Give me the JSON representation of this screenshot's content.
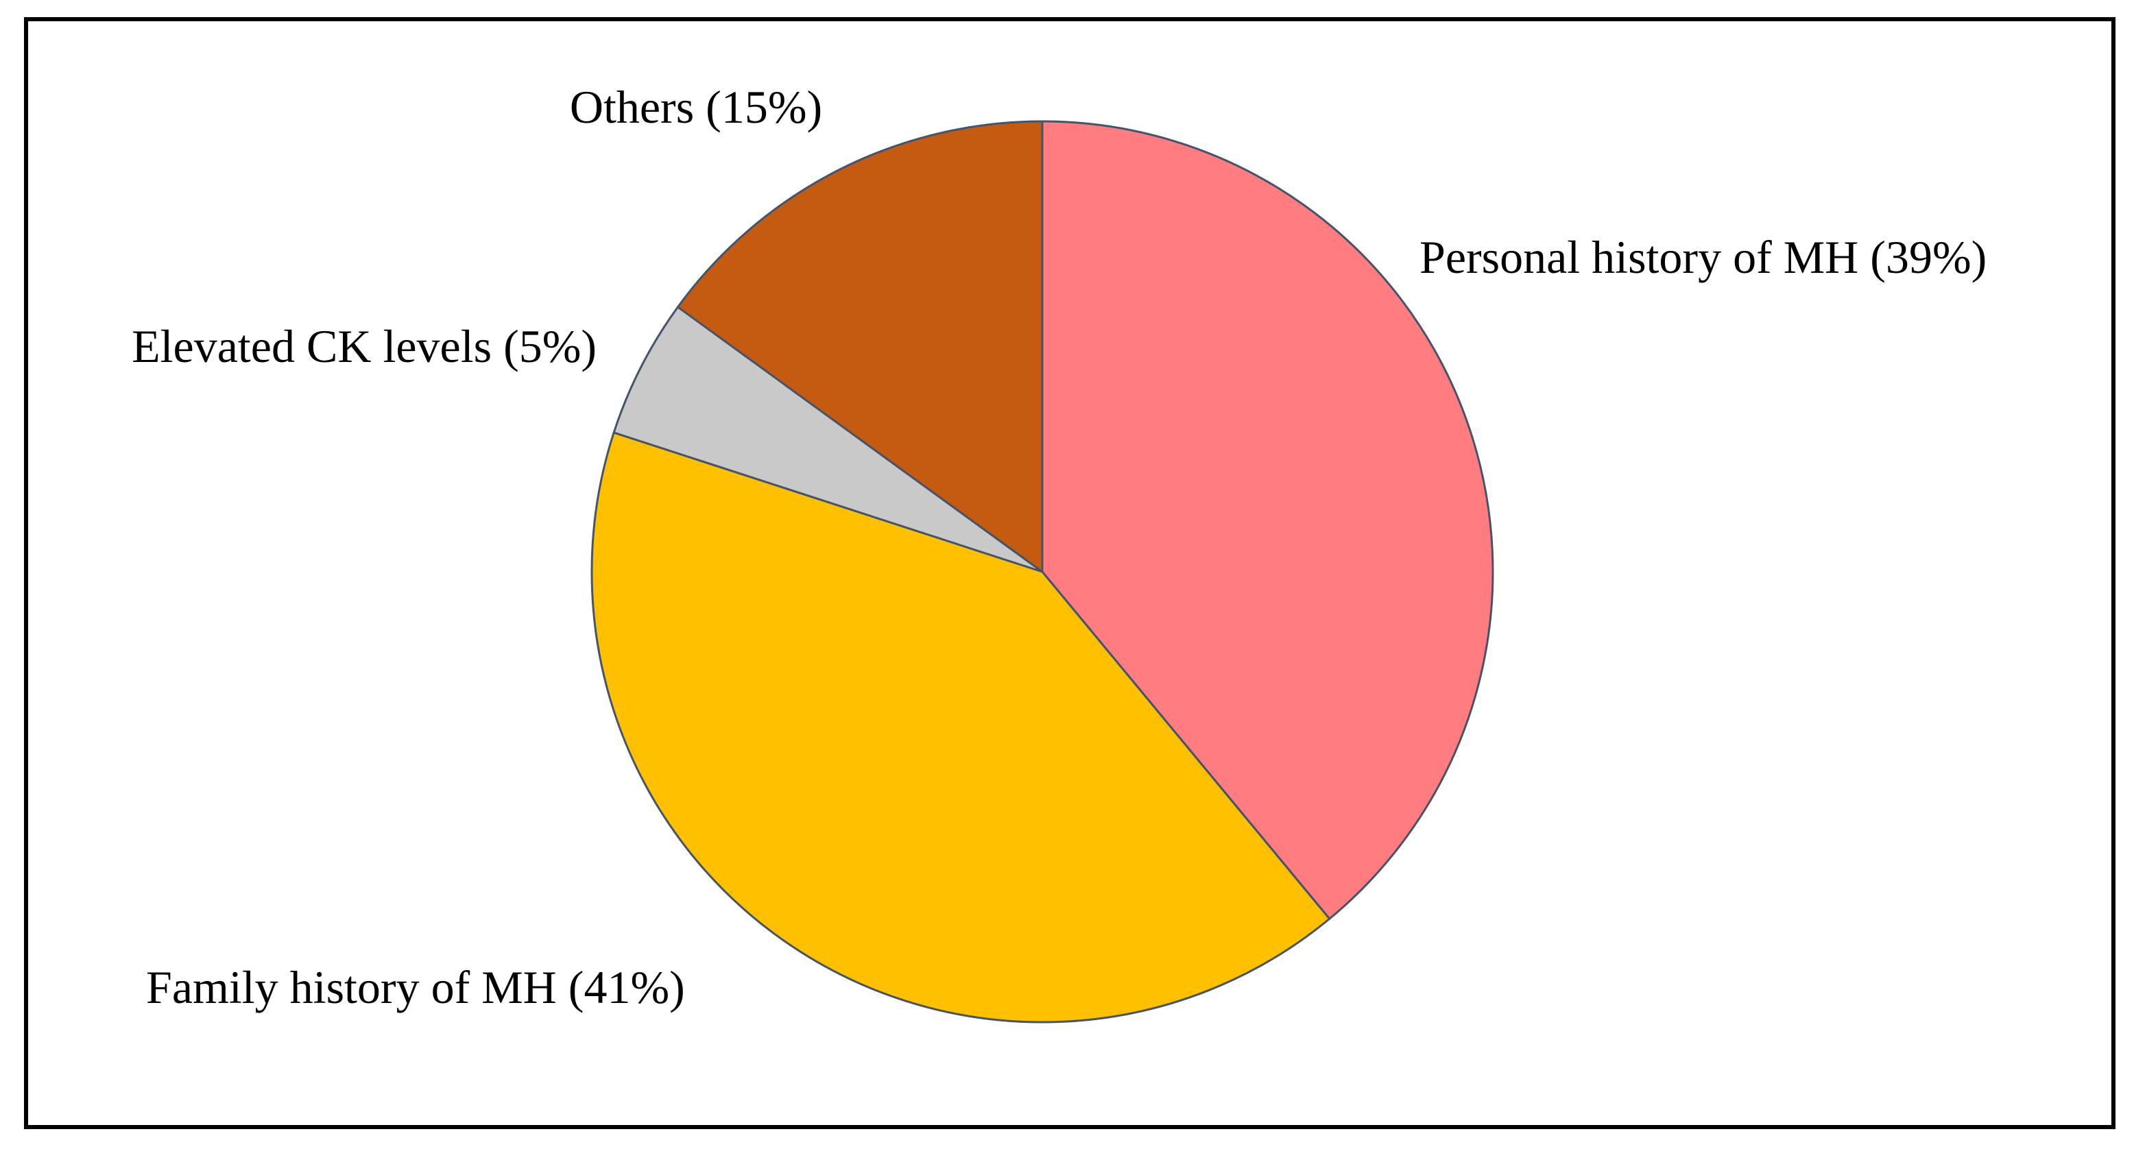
{
  "chart_data": {
    "type": "pie",
    "categories": [
      "Personal history of MH",
      "Family history of MH",
      "Elevated CK levels",
      "Others"
    ],
    "values": [
      39,
      41,
      5,
      15
    ],
    "value_labels": [
      "(39%)",
      "(41%)",
      "(5%)",
      "(15%)"
    ],
    "colors": [
      "#FF7C80",
      "#FFC000",
      "#C9C9C9",
      "#C55A11"
    ]
  }
}
